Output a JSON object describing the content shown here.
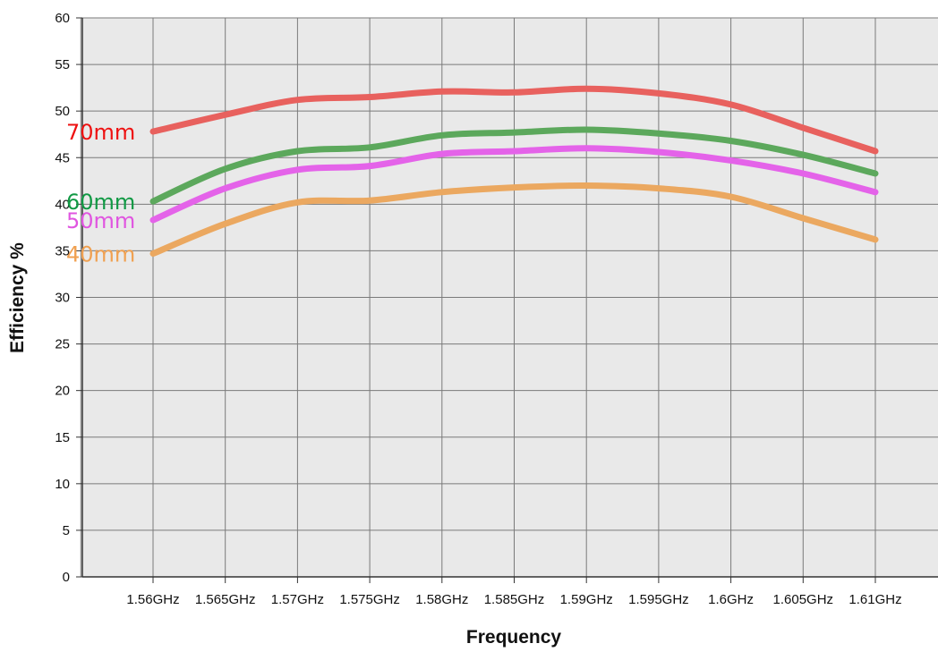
{
  "chart_data": {
    "type": "line",
    "xlabel": "Frequency",
    "ylabel": "Efficiency %",
    "ylim": [
      0,
      60
    ],
    "yticks": [
      0,
      5,
      10,
      15,
      20,
      25,
      30,
      35,
      40,
      45,
      50,
      55,
      60
    ],
    "categories": [
      "1.56GHz",
      "1.565GHz",
      "1.57GHz",
      "1.575GHz",
      "1.58GHz",
      "1.585GHz",
      "1.59GHz",
      "1.595GHz",
      "1.6GHz",
      "1.605GHz",
      "1.61GHz"
    ],
    "grid": true,
    "series": [
      {
        "name": "70mm",
        "color": "#e8615e",
        "label_color": "#ee1111",
        "values": [
          47.8,
          49.6,
          51.2,
          51.5,
          52.1,
          52.0,
          52.4,
          51.9,
          50.7,
          48.2,
          45.7
        ]
      },
      {
        "name": "60mm",
        "color": "#5ca85c",
        "label_color": "#119944",
        "values": [
          40.3,
          43.8,
          45.7,
          46.1,
          47.4,
          47.7,
          48.0,
          47.6,
          46.8,
          45.3,
          43.3
        ]
      },
      {
        "name": "50mm",
        "color": "#e463e9",
        "label_color": "#e055e0",
        "values": [
          38.3,
          41.7,
          43.7,
          44.1,
          45.4,
          45.7,
          46.0,
          45.6,
          44.7,
          43.3,
          41.3
        ]
      },
      {
        "name": "40mm",
        "color": "#eba860",
        "label_color": "#f0a050",
        "values": [
          34.7,
          37.9,
          40.2,
          40.4,
          41.3,
          41.8,
          42.0,
          41.7,
          40.8,
          38.5,
          36.2
        ]
      }
    ]
  }
}
